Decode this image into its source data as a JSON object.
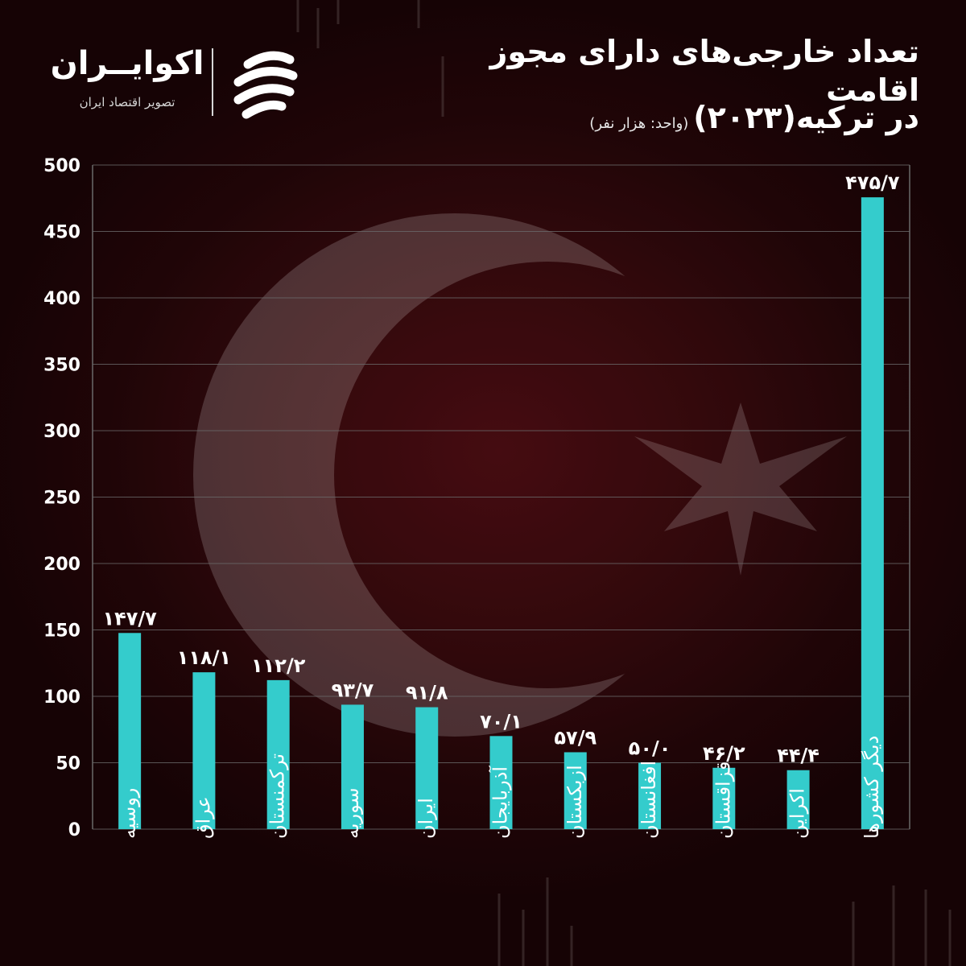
{
  "title": {
    "line1": "تعداد خارجی‌های دارای مجوز اقامت",
    "line2": "در ترکیه(۲۰۲۳)",
    "unit": "(واحد: هزار نفر)"
  },
  "logo": {
    "name": "اکوایــران",
    "tagline": "تصویر اقتصاد ایران",
    "icon": "ecoiran-logo-icon"
  },
  "colors": {
    "bar": "#34cccc",
    "background": "#1c0507",
    "grid": "#6a6a6a",
    "text": "#ffffff"
  },
  "chart_data": {
    "type": "bar",
    "title": "تعداد خارجی‌های دارای مجوز اقامت در ترکیه(۲۰۲۳)",
    "unit": "(واحد: هزار نفر)",
    "xlabel": "",
    "ylabel": "",
    "ylim": [
      0,
      500
    ],
    "yticks": [
      0,
      50,
      100,
      150,
      200,
      250,
      300,
      350,
      400,
      450,
      500
    ],
    "ytick_labels": [
      "0",
      "50",
      "100",
      "150",
      "200",
      "250",
      "300",
      "350",
      "400",
      "450",
      "500"
    ],
    "grid": true,
    "legend": "none",
    "categories": [
      "روسیه",
      "عراق",
      "ترکمنستان",
      "سوریه",
      "ایران",
      "آذربایجان",
      "ازبکستان",
      "افغانستان",
      "قزاقستان",
      "اکراین",
      "دیگر کشورها"
    ],
    "values": [
      147.7,
      118.1,
      112.2,
      93.7,
      91.8,
      70.1,
      57.9,
      50.0,
      46.2,
      44.4,
      475.7
    ],
    "value_labels": [
      "۱۴۷/۷",
      "۱۱۸/۱",
      "۱۱۲/۲",
      "۹۳/۷",
      "۹۱/۸",
      "۷۰/۱",
      "۵۷/۹",
      "۵۰/۰",
      "۴۶/۲",
      "۴۴/۴",
      "۴۷۵/۷"
    ]
  }
}
